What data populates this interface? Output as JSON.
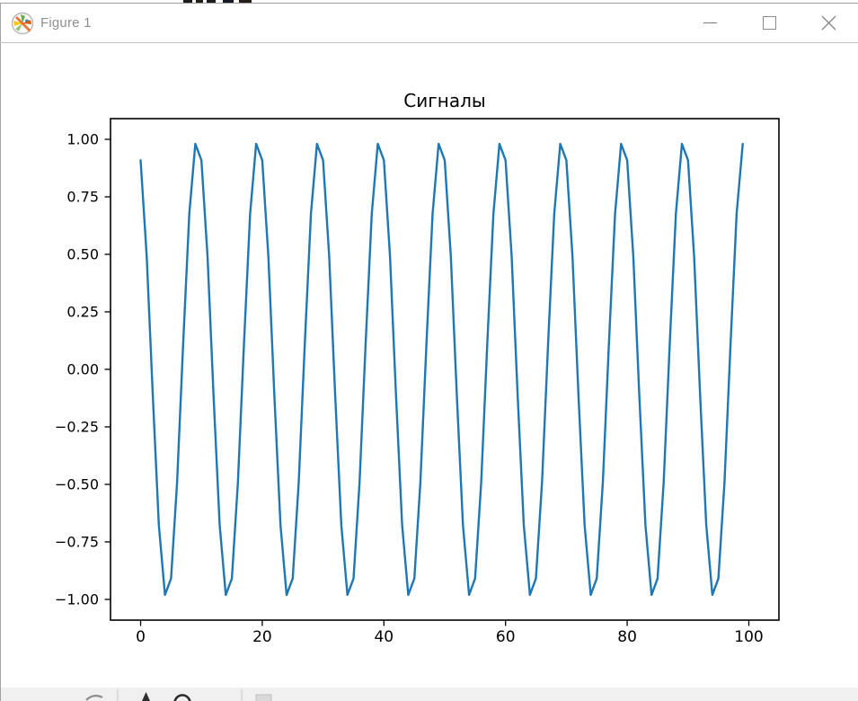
{
  "window": {
    "title": "Figure 1",
    "icon": "matplotlib-logo-icon",
    "controls": {
      "minimize": "minimize",
      "maximize": "maximize",
      "close": "close"
    }
  },
  "chart_data": {
    "type": "line",
    "title": "Сигналы",
    "xlabel": "",
    "ylabel": "",
    "grid": false,
    "legend": "none",
    "line_color": "#1f77b4",
    "line_width": 2.4,
    "xlim": [
      -4.95,
      104.95
    ],
    "ylim": [
      -1.09,
      1.09
    ],
    "xticks": [
      0,
      20,
      40,
      60,
      80,
      100
    ],
    "ytick_values": [
      1.0,
      0.75,
      0.5,
      0.25,
      0.0,
      -0.25,
      -0.5,
      -0.75,
      -1.0
    ],
    "ytick_labels": [
      "1.00",
      "0.75",
      "0.50",
      "0.25",
      "0.00",
      "−0.25",
      "−0.50",
      "−0.75",
      "−1.00"
    ],
    "x": [
      0,
      1,
      2,
      3,
      4,
      5,
      6,
      7,
      8,
      9,
      10,
      11,
      12,
      13,
      14,
      15,
      16,
      17,
      18,
      19,
      20,
      21,
      22,
      23,
      24,
      25,
      26,
      27,
      28,
      29,
      30,
      31,
      32,
      33,
      34,
      35,
      36,
      37,
      38,
      39,
      40,
      41,
      42,
      43,
      44,
      45,
      46,
      47,
      48,
      49,
      50,
      51,
      52,
      53,
      54,
      55,
      56,
      57,
      58,
      59,
      60,
      61,
      62,
      63,
      64,
      65,
      66,
      67,
      68,
      69,
      70,
      71,
      72,
      73,
      74,
      75,
      76,
      77,
      78,
      79,
      80,
      81,
      82,
      83,
      84,
      85,
      86,
      87,
      88,
      89,
      90,
      91,
      92,
      93,
      94,
      95,
      96,
      97,
      98,
      99
    ],
    "y": [
      0.9093,
      0.4913,
      -0.1148,
      -0.6768,
      -0.9802,
      -0.9093,
      -0.4913,
      0.1148,
      0.6768,
      0.9802,
      0.9093,
      0.4913,
      -0.1148,
      -0.6768,
      -0.9802,
      -0.9093,
      -0.4913,
      0.1148,
      0.6768,
      0.9802,
      0.9093,
      0.4913,
      -0.1148,
      -0.6768,
      -0.9802,
      -0.9093,
      -0.4913,
      0.1148,
      0.6768,
      0.9802,
      0.9093,
      0.4913,
      -0.1148,
      -0.6768,
      -0.9802,
      -0.9093,
      -0.4913,
      0.1148,
      0.6768,
      0.9802,
      0.9093,
      0.4913,
      -0.1148,
      -0.6768,
      -0.9802,
      -0.9093,
      -0.4913,
      0.1148,
      0.6768,
      0.9802,
      0.9093,
      0.4913,
      -0.1148,
      -0.6768,
      -0.9802,
      -0.9093,
      -0.4913,
      0.1148,
      0.6768,
      0.9802,
      0.9093,
      0.4913,
      -0.1148,
      -0.6768,
      -0.9802,
      -0.9093,
      -0.4913,
      0.1148,
      0.6768,
      0.9802,
      0.9093,
      0.4913,
      -0.1148,
      -0.6768,
      -0.9802,
      -0.9093,
      -0.4913,
      0.1148,
      0.6768,
      0.9802,
      0.9093,
      0.4913,
      -0.1148,
      -0.6768,
      -0.9802,
      -0.9093,
      -0.4913,
      0.1148,
      0.6768,
      0.9802,
      0.9093,
      0.4913,
      -0.1148,
      -0.6768,
      -0.9802,
      -0.9093,
      -0.4913,
      0.1148,
      0.6768,
      0.9802
    ]
  },
  "toolbar": {
    "visible_partial_icons": [
      "back-icon",
      "pan-icon",
      "zoom-icon",
      "subplots-icon"
    ]
  }
}
